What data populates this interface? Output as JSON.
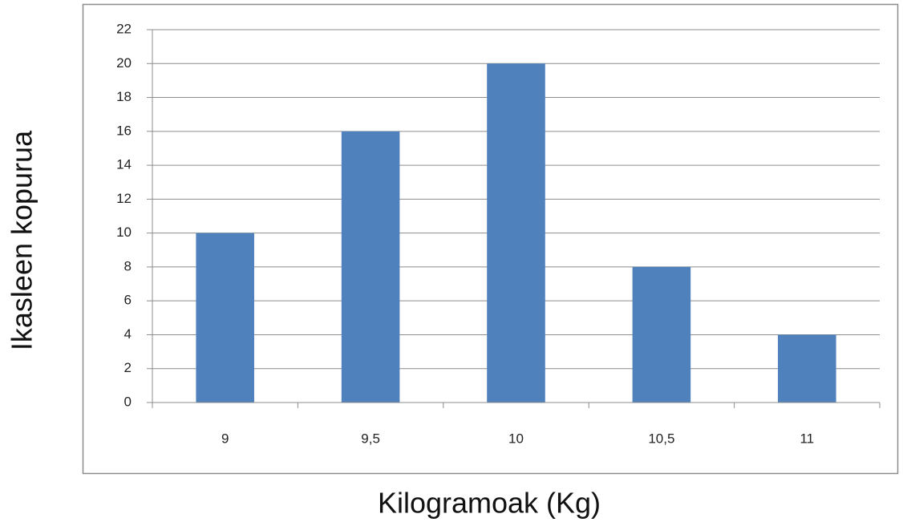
{
  "chart_data": {
    "type": "bar",
    "categories": [
      "9",
      "9,5",
      "10",
      "10,5",
      "11"
    ],
    "values": [
      10,
      16,
      20,
      8,
      4
    ],
    "color": "#4f81bd",
    "xlabel": "Kilogramoak (Kg)",
    "ylabel": "Ikasleen kopurua",
    "ylim": [
      0,
      22
    ],
    "yticks": [
      0,
      2,
      4,
      6,
      8,
      10,
      12,
      14,
      16,
      18,
      20,
      22
    ],
    "grid": true
  }
}
